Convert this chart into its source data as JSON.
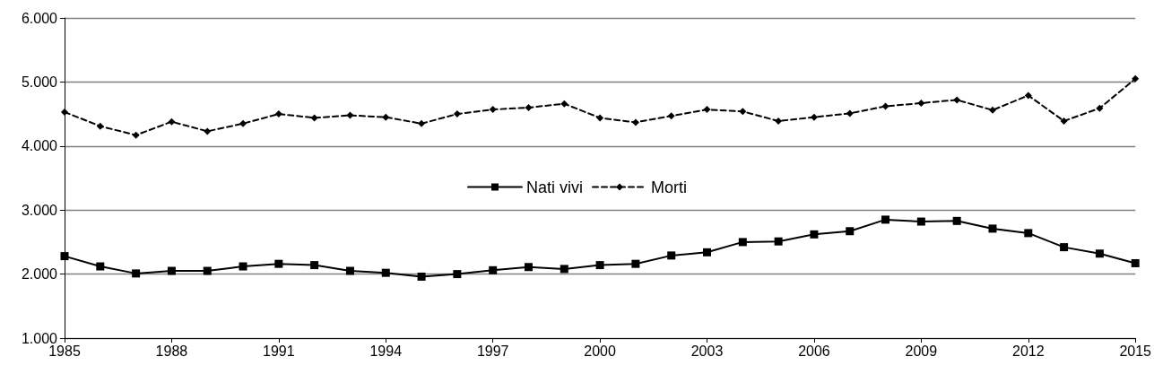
{
  "chart_data": {
    "type": "line",
    "x": [
      1985,
      1986,
      1987,
      1988,
      1989,
      1990,
      1991,
      1992,
      1993,
      1994,
      1995,
      1996,
      1997,
      1998,
      1999,
      2000,
      2001,
      2002,
      2003,
      2004,
      2005,
      2006,
      2007,
      2008,
      2009,
      2010,
      2011,
      2012,
      2013,
      2014,
      2015
    ],
    "series": [
      {
        "name": "Nati vivi",
        "color": "#000000",
        "marker": "square",
        "line_style": "solid",
        "values": [
          2280,
          2120,
          2010,
          2050,
          2050,
          2120,
          2160,
          2140,
          2050,
          2020,
          1960,
          2000,
          2060,
          2110,
          2080,
          2140,
          2160,
          2290,
          2340,
          2500,
          2510,
          2620,
          2670,
          2850,
          2820,
          2830,
          2710,
          2640,
          2420,
          2320,
          2170
        ]
      },
      {
        "name": "Morti",
        "color": "#000000",
        "marker": "diamond",
        "line_style": "dashed",
        "values": [
          4530,
          4310,
          4170,
          4380,
          4230,
          4350,
          4500,
          4440,
          4480,
          4450,
          4350,
          4500,
          4570,
          4600,
          4660,
          4440,
          4370,
          4470,
          4570,
          4540,
          4390,
          4450,
          4510,
          4620,
          4670,
          4720,
          4560,
          4790,
          4390,
          4590,
          5050
        ]
      }
    ],
    "xlim": [
      1985,
      2015
    ],
    "xticks": [
      1985,
      1988,
      1991,
      1994,
      1997,
      2000,
      2003,
      2006,
      2009,
      2012,
      2015
    ],
    "ylim": [
      1000,
      6000
    ],
    "yticks": [
      {
        "value": 1000,
        "label": "1.000"
      },
      {
        "value": 2000,
        "label": "2.000"
      },
      {
        "value": 3000,
        "label": "3.000"
      },
      {
        "value": 4000,
        "label": "4.000"
      },
      {
        "value": 5000,
        "label": "5.000"
      },
      {
        "value": 6000,
        "label": "6.000"
      }
    ],
    "grid": "y",
    "legend": "center"
  }
}
